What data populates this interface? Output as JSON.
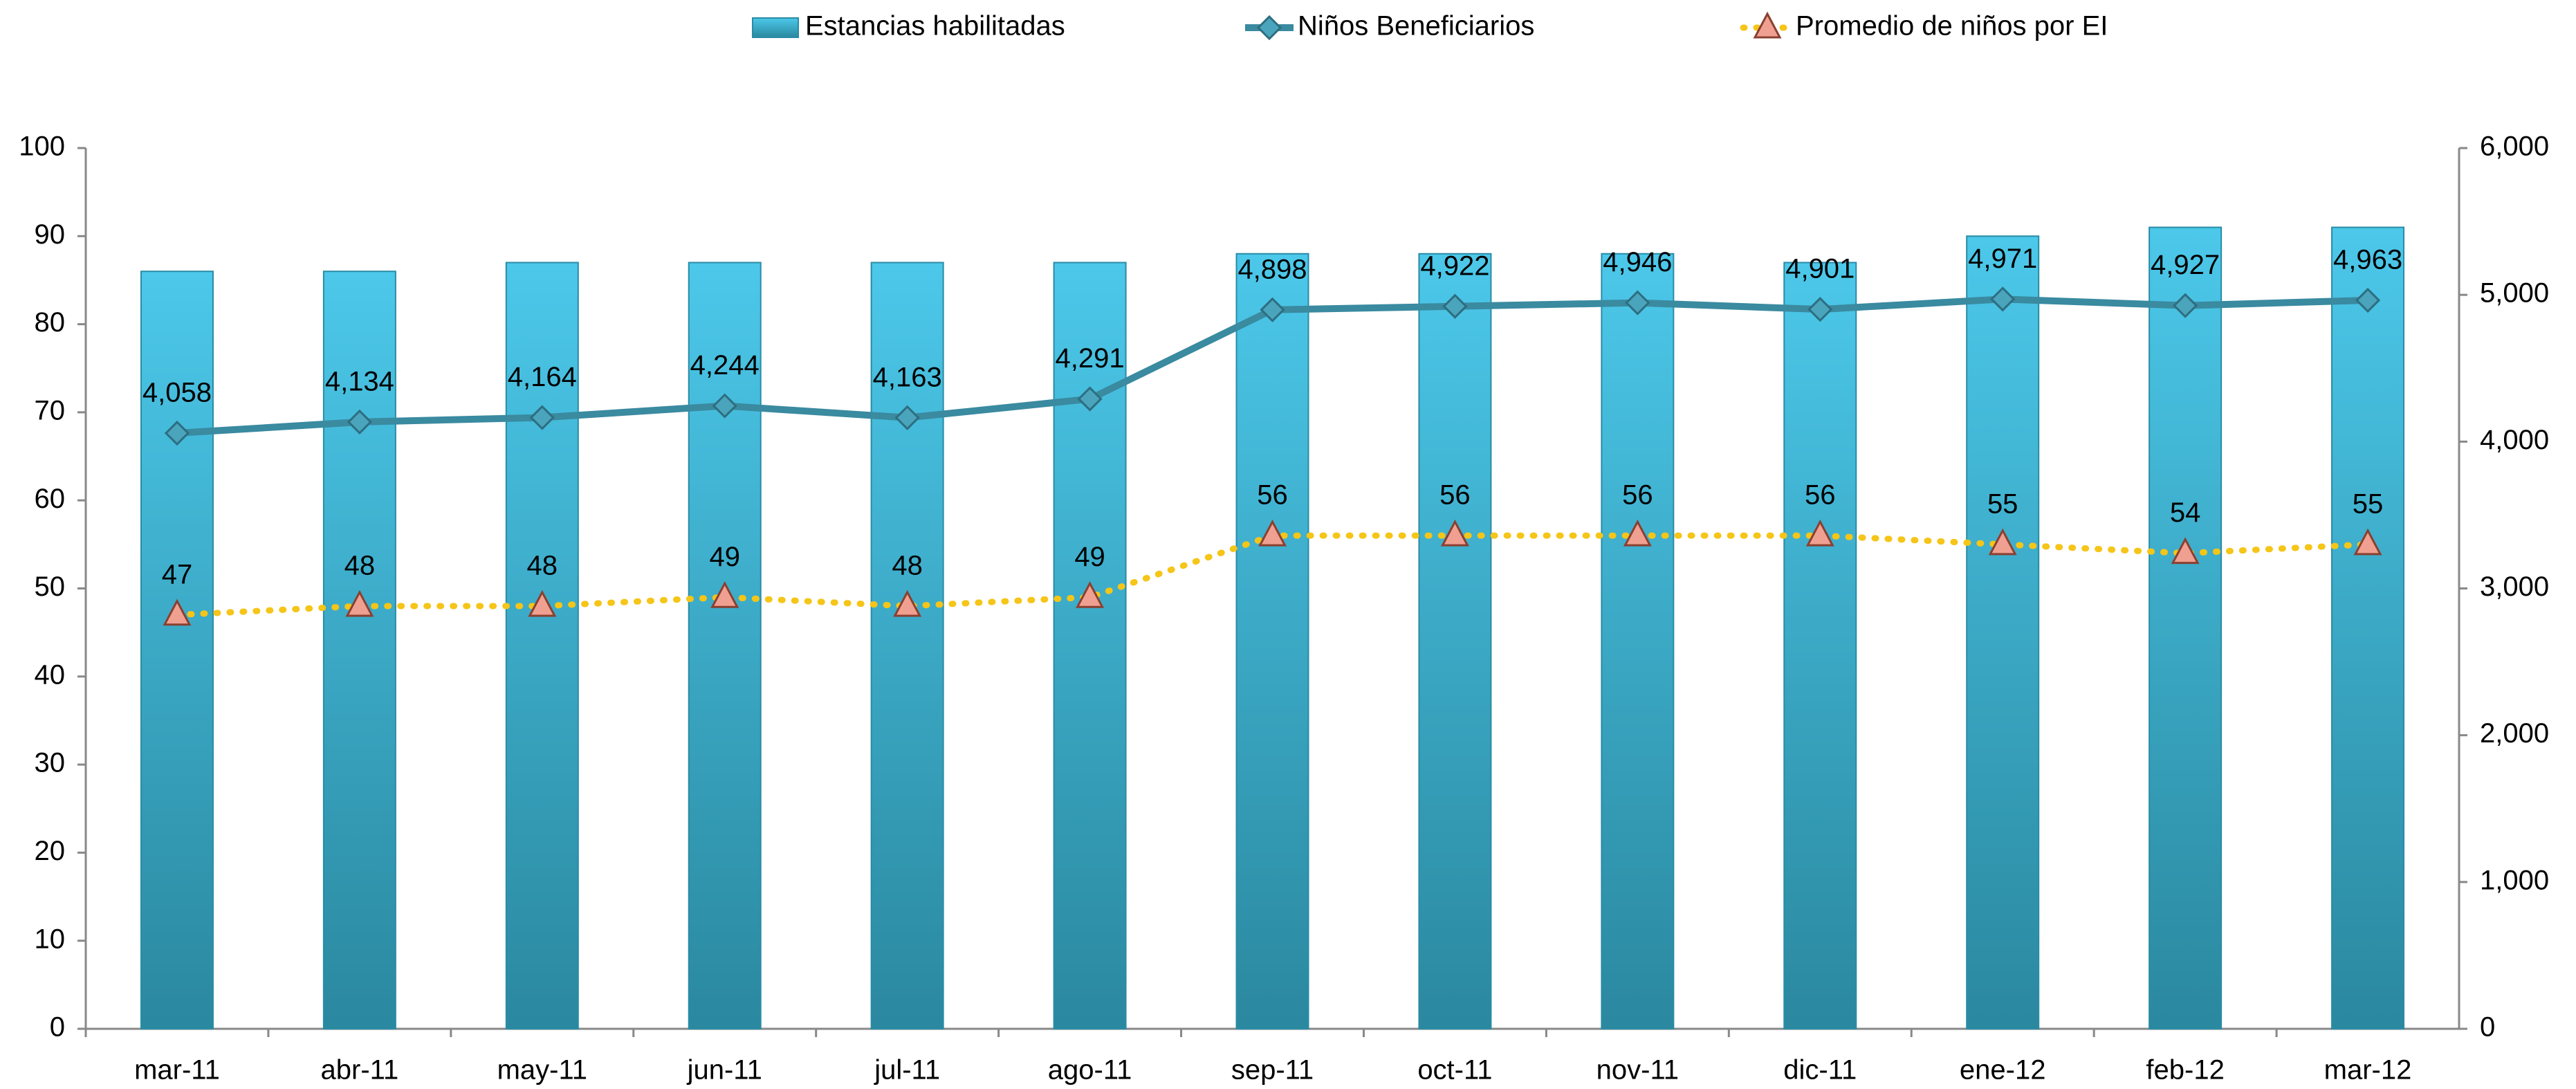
{
  "chart_data": {
    "type": "bar_line",
    "categories": [
      "mar-11",
      "abr-11",
      "may-11",
      "jun-11",
      "jul-11",
      "ago-11",
      "sep-11",
      "oct-11",
      "nov-11",
      "dic-11",
      "ene-12",
      "feb-12",
      "mar-12"
    ],
    "series": [
      {
        "name": "Estancias habilitadas",
        "type": "bar",
        "color": "#3bb8d8",
        "values": [
          86,
          86,
          87,
          87,
          87,
          87,
          88,
          88,
          88,
          87,
          90,
          91,
          91
        ]
      },
      {
        "name": "Niños Beneficiarios",
        "type": "line",
        "axis": "y2",
        "color": "#3a8aa0",
        "values": [
          4058,
          4134,
          4164,
          4244,
          4163,
          4291,
          4898,
          4922,
          4946,
          4901,
          4971,
          4927,
          4963
        ],
        "value_labels": [
          "4,058",
          "4,134",
          "4,164",
          "4,244",
          "4,163",
          "4,291",
          "4,898",
          "4,922",
          "4,946",
          "4,901",
          "4,971",
          "4,927",
          "4,963"
        ]
      },
      {
        "name": "Promedio de niños por EI",
        "type": "dotted",
        "color": "#f5c518",
        "marker_color": "#f0a090",
        "values": [
          47,
          48,
          48,
          49,
          48,
          49,
          56,
          56,
          56,
          56,
          55,
          54,
          55
        ]
      }
    ],
    "ylim": [
      0,
      100
    ],
    "yticks": [
      0,
      10,
      20,
      30,
      40,
      50,
      60,
      70,
      80,
      90,
      100
    ],
    "y2lim": [
      0,
      6000
    ],
    "y2ticks": [
      0,
      {
        "value": 1000,
        "label": "1,000"
      },
      {
        "value": 2000,
        "label": "2,000"
      },
      {
        "value": 3000,
        "label": "3,000"
      },
      {
        "value": 4000,
        "label": "4,000"
      },
      {
        "value": 5000,
        "label": "5,000"
      },
      {
        "value": 6000,
        "label": "6,000"
      }
    ],
    "legend": "top"
  }
}
